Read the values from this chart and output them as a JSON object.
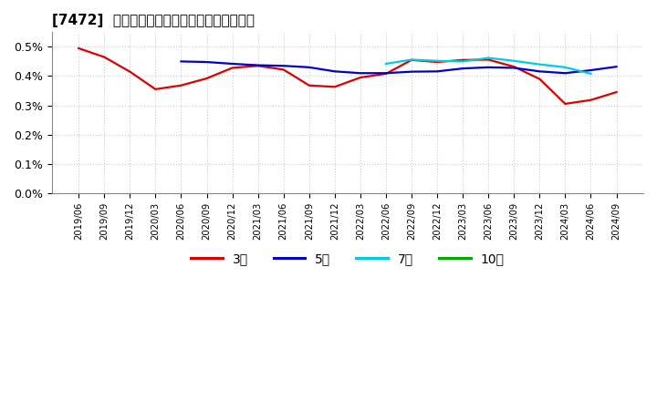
{
  "title": "[7472]  当期純利益マージンの標準偏差の推移",
  "background_color": "#ffffff",
  "plot_bg_color": "#ffffff",
  "grid_color": "#cccccc",
  "ylim_raw": [
    0.0,
    0.0055
  ],
  "yticks_raw": [
    0.0,
    0.001,
    0.002,
    0.003,
    0.004,
    0.005
  ],
  "ytick_labels": [
    "0.0%",
    "0.1%",
    "0.2%",
    "0.3%",
    "0.4%",
    "0.5%"
  ],
  "x_labels": [
    "2019/06",
    "2019/09",
    "2019/12",
    "2020/03",
    "2020/06",
    "2020/09",
    "2020/12",
    "2021/03",
    "2021/06",
    "2021/09",
    "2021/12",
    "2022/03",
    "2022/06",
    "2022/09",
    "2022/12",
    "2023/03",
    "2023/06",
    "2023/09",
    "2023/12",
    "2024/03",
    "2024/06",
    "2024/09"
  ],
  "series_order": [
    "3年",
    "5年",
    "7年",
    "10年"
  ],
  "series": {
    "3年": {
      "color": "#dd0000",
      "linewidth": 1.6,
      "values": [
        0.00495,
        0.00465,
        0.00415,
        0.00355,
        0.00368,
        0.00392,
        0.00428,
        0.00435,
        0.00422,
        0.00368,
        0.00363,
        0.00395,
        0.00408,
        0.00455,
        0.00448,
        0.00455,
        0.00456,
        0.00432,
        0.0039,
        0.00305,
        0.00318,
        0.00345
      ]
    },
    "5年": {
      "color": "#0000cc",
      "linewidth": 1.6,
      "values": [
        null,
        null,
        null,
        null,
        0.0045,
        0.00448,
        0.00442,
        0.00437,
        0.00435,
        0.0043,
        0.00416,
        0.0041,
        0.0041,
        0.00415,
        0.00416,
        0.00426,
        0.0043,
        0.00428,
        0.00416,
        0.0041,
        0.0042,
        0.00432
      ]
    },
    "7年": {
      "color": "#00ccdd",
      "linewidth": 1.6,
      "values": [
        null,
        null,
        null,
        null,
        null,
        null,
        null,
        null,
        null,
        null,
        null,
        null,
        0.00442,
        0.00456,
        0.00452,
        0.0045,
        0.00462,
        0.00452,
        0.0044,
        0.0043,
        0.00408,
        null
      ]
    },
    "10年": {
      "color": "#00aa00",
      "linewidth": 1.6,
      "values": [
        null,
        null,
        null,
        null,
        null,
        null,
        null,
        null,
        null,
        null,
        null,
        null,
        null,
        null,
        null,
        null,
        null,
        null,
        null,
        null,
        null,
        null
      ]
    }
  },
  "legend_entries": [
    "3年",
    "5年",
    "7年",
    "10年"
  ],
  "legend_colors": [
    "#dd0000",
    "#0000cc",
    "#00ccdd",
    "#00aa00"
  ]
}
